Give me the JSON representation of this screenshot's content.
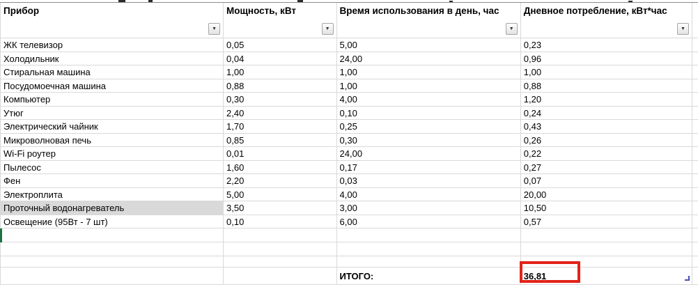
{
  "table": {
    "columns": [
      {
        "label": "Прибор"
      },
      {
        "label": "Мощность, кВт"
      },
      {
        "label": "Время использования в день, час"
      },
      {
        "label": "Дневное потребление, кВт*час"
      }
    ],
    "rows": [
      [
        "ЖК телевизор",
        "0,05",
        "5,00",
        "0,23"
      ],
      [
        "Холодильник",
        "0,04",
        "24,00",
        "0,96"
      ],
      [
        "Стиральная машина",
        "1,00",
        "1,00",
        "1,00"
      ],
      [
        "Посудомоечная машина",
        "0,88",
        "1,00",
        "0,88"
      ],
      [
        "Компьютер",
        "0,30",
        "4,00",
        "1,20"
      ],
      [
        "Утюг",
        "2,40",
        "0,10",
        "0,24"
      ],
      [
        "Электрический чайник",
        "1,70",
        "0,25",
        "0,43"
      ],
      [
        "Микроволновая печь",
        "0,85",
        "0,30",
        "0,26"
      ],
      [
        "Wi-Fi роутер",
        "0,01",
        "24,00",
        "0,22"
      ],
      [
        "Пылесос",
        "1,60",
        "0,17",
        "0,27"
      ],
      [
        "Фен",
        "2,20",
        "0,03",
        "0,07"
      ],
      [
        "Электроплита",
        "5,00",
        "4,00",
        "20,00"
      ],
      [
        "Проточный водонагреватель",
        "3,50",
        "3,00",
        "10,50"
      ],
      [
        "Освещение (95Вт - 7 шт)",
        "0,10",
        "6,00",
        "0,57"
      ]
    ],
    "highlighted_row_index": 12,
    "total": {
      "label": "ИТОГО:",
      "value": "36,81"
    }
  },
  "icons": {
    "filter": "▼"
  },
  "colors": {
    "annotation_red": "#e2231a",
    "selection_green": "#1e7145",
    "highlight_gray": "#d9d9d9",
    "table_corner_blue": "#3f51b5",
    "gridline": "#d9d9d9"
  }
}
